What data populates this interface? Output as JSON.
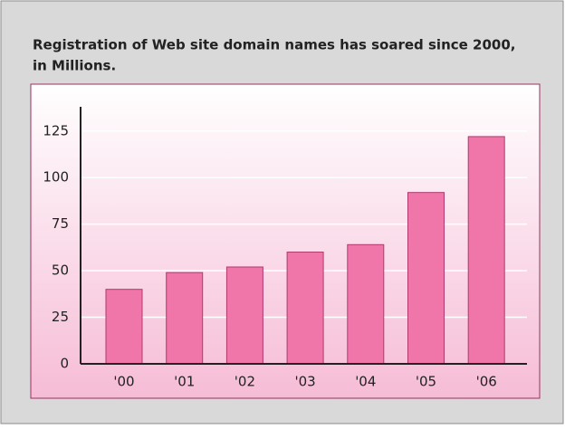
{
  "chart_data": {
    "type": "bar",
    "title": "Registration of Web site domain names has soared since 2000,",
    "subtitle": "in Millions.",
    "categories": [
      "'00",
      "'01",
      "'02",
      "'03",
      "'04",
      "'05",
      "'06"
    ],
    "values": [
      40,
      49,
      52,
      60,
      64,
      92,
      122
    ],
    "color": "#f075a9",
    "ylim": [
      0,
      138
    ],
    "yticks": [
      0,
      25,
      50,
      75,
      100,
      125
    ],
    "grid": true
  }
}
